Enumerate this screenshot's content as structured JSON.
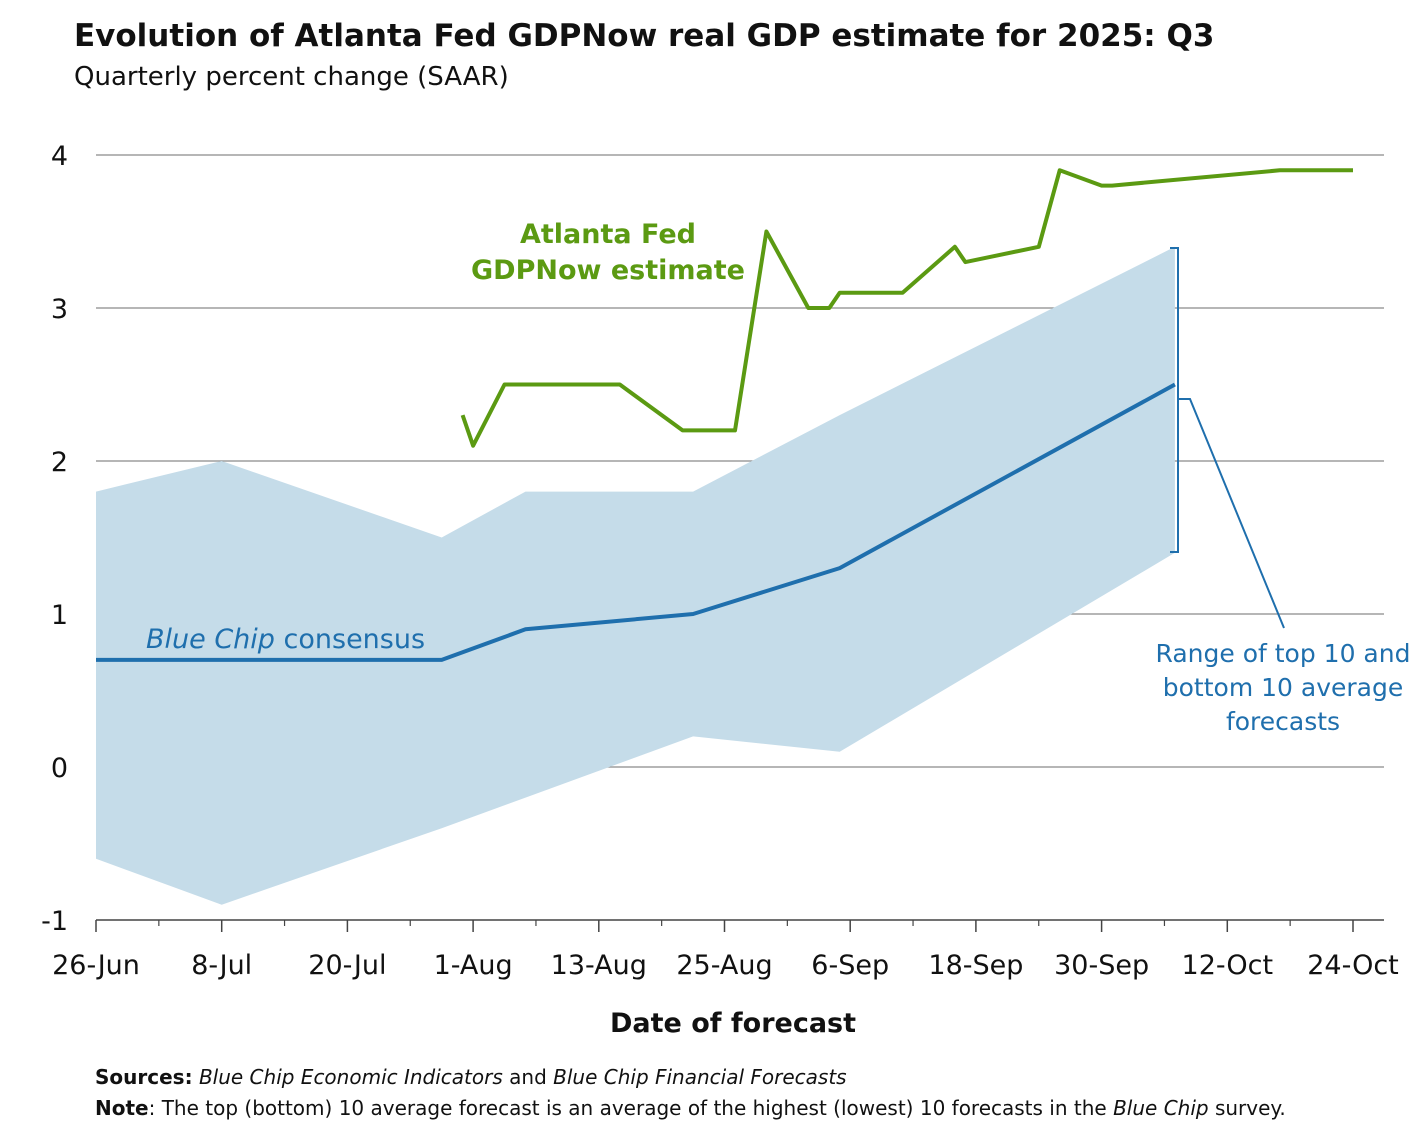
{
  "title": "Evolution of Atlanta Fed GDPNow real GDP estimate for 2025: Q3",
  "subtitle": "Quarterly percent change (SAAR)",
  "chart_data": {
    "type": "line",
    "title": "Evolution of Atlanta Fed GDPNow real GDP estimate for 2025: Q3",
    "subtitle": "Quarterly percent change (SAAR)",
    "xlabel": "Date of forecast",
    "ylabel": "",
    "ylim": [
      -1,
      4
    ],
    "yticks": [
      -1,
      0,
      1,
      2,
      3,
      4
    ],
    "xticks": [
      "26-Jun",
      "8-Jul",
      "20-Jul",
      "1-Aug",
      "13-Aug",
      "25-Aug",
      "6-Sep",
      "18-Sep",
      "30-Sep",
      "12-Oct",
      "24-Oct"
    ],
    "grid": true,
    "series": [
      {
        "name": "Atlanta Fed GDPNow estimate",
        "color": "#5b9a12",
        "x": [
          "2025-07-31",
          "2025-08-01",
          "2025-08-04",
          "2025-08-15",
          "2025-08-21",
          "2025-08-26",
          "2025-08-29",
          "2025-09-02",
          "2025-09-04",
          "2025-09-05",
          "2025-09-11",
          "2025-09-16",
          "2025-09-17",
          "2025-09-24",
          "2025-09-26",
          "2025-09-30",
          "2025-10-01",
          "2025-10-17",
          "2025-10-24"
        ],
        "values": [
          2.3,
          2.1,
          2.5,
          2.5,
          2.2,
          2.2,
          3.5,
          3.0,
          3.0,
          3.1,
          3.1,
          3.4,
          3.3,
          3.4,
          3.9,
          3.8,
          3.8,
          3.9,
          3.9
        ]
      },
      {
        "name": "Blue Chip consensus",
        "color": "#1f6fad",
        "x": [
          "2025-06-26",
          "2025-07-08",
          "2025-07-29",
          "2025-08-06",
          "2025-08-22",
          "2025-09-05",
          "2025-10-07"
        ],
        "values": [
          0.7,
          0.7,
          0.7,
          0.9,
          1.0,
          1.3,
          2.5
        ]
      },
      {
        "name": "Range of top 10 and bottom 10 average forecasts",
        "type": "area",
        "color": "#c5dce9",
        "x": [
          "2025-06-26",
          "2025-07-08",
          "2025-07-29",
          "2025-08-06",
          "2025-08-22",
          "2025-09-05",
          "2025-10-07"
        ],
        "high": [
          1.8,
          2.0,
          1.5,
          1.8,
          1.8,
          2.3,
          3.4
        ],
        "low": [
          -0.6,
          -0.9,
          -0.4,
          -0.2,
          0.2,
          0.1,
          1.4
        ]
      }
    ]
  },
  "annotations": {
    "gdpnow_label_line1": "Atlanta Fed",
    "gdpnow_label_line2": "GDPNow estimate",
    "bluechip_italic": "Blue Chip",
    "bluechip_rest": " consensus",
    "range_line1": "Range of top 10 and",
    "range_line2": "bottom 10 average",
    "range_line3": "forecasts"
  },
  "footer": {
    "sources_label": "Sources:",
    "sources_text_1": "Blue Chip Economic Indicators",
    "sources_text_2": " and ",
    "sources_text_3": "Blue Chip Financial Forecasts",
    "note_label": "Note",
    "note_text_1": ": The top (bottom) 10 average forecast is an average of the highest (lowest) 10 forecasts in the ",
    "note_text_2": "Blue Chip",
    "note_text_3": " survey."
  }
}
